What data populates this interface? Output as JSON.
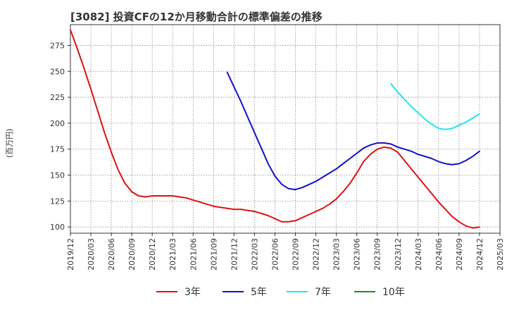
{
  "chart_data": {
    "type": "line",
    "title": "[3082]  投資CFの12か月移動合計の標準偏差の推移",
    "xlabel": "",
    "ylabel": "(百万円)",
    "x_ticks": [
      "2019/12",
      "2020/03",
      "2020/06",
      "2020/09",
      "2020/12",
      "2021/03",
      "2021/06",
      "2021/09",
      "2021/12",
      "2022/03",
      "2022/06",
      "2022/09",
      "2022/12",
      "2023/03",
      "2023/06",
      "2023/09",
      "2023/12",
      "2024/03",
      "2024/06",
      "2024/09",
      "2024/12",
      "2025/03"
    ],
    "y_ticks": [
      100,
      125,
      150,
      175,
      200,
      225,
      250,
      275
    ],
    "xlim": [
      "2019/12",
      "2025/03"
    ],
    "ylim": [
      94,
      295
    ],
    "grid": true,
    "legend_position": "bottom",
    "series": [
      {
        "name": "3年",
        "color": "#dd1111",
        "x": [
          "2019/12",
          "2020/01",
          "2020/02",
          "2020/03",
          "2020/04",
          "2020/05",
          "2020/06",
          "2020/07",
          "2020/08",
          "2020/09",
          "2020/10",
          "2020/11",
          "2020/12",
          "2021/01",
          "2021/02",
          "2021/03",
          "2021/04",
          "2021/05",
          "2021/06",
          "2021/07",
          "2021/08",
          "2021/09",
          "2021/10",
          "2021/11",
          "2021/12",
          "2022/01",
          "2022/02",
          "2022/03",
          "2022/04",
          "2022/05",
          "2022/06",
          "2022/07",
          "2022/08",
          "2022/09",
          "2022/10",
          "2022/11",
          "2022/12",
          "2023/01",
          "2023/02",
          "2023/03",
          "2023/04",
          "2023/05",
          "2023/06",
          "2023/07",
          "2023/08",
          "2023/09",
          "2023/10",
          "2023/11",
          "2023/12",
          "2024/01",
          "2024/02",
          "2024/03",
          "2024/04",
          "2024/05",
          "2024/06",
          "2024/07",
          "2024/08",
          "2024/09",
          "2024/10",
          "2024/11",
          "2024/12"
        ],
        "values": [
          290,
          272,
          253,
          233,
          212,
          191,
          172,
          155,
          142,
          134,
          130,
          129,
          130,
          130,
          130,
          130,
          129,
          128,
          126,
          124,
          122,
          120,
          119,
          118,
          117,
          117,
          116,
          115,
          113,
          111,
          108,
          105,
          105,
          106,
          109,
          112,
          115,
          118,
          122,
          127,
          134,
          142,
          152,
          163,
          170,
          175,
          177,
          176,
          172,
          164,
          156,
          148,
          140,
          132,
          124,
          117,
          110,
          105,
          101,
          99,
          100
        ]
      },
      {
        "name": "5年",
        "color": "#1111cc",
        "x": [
          "2021/11",
          "2021/12",
          "2022/01",
          "2022/02",
          "2022/03",
          "2022/04",
          "2022/05",
          "2022/06",
          "2022/07",
          "2022/08",
          "2022/09",
          "2022/10",
          "2022/11",
          "2022/12",
          "2023/01",
          "2023/02",
          "2023/03",
          "2023/04",
          "2023/05",
          "2023/06",
          "2023/07",
          "2023/08",
          "2023/09",
          "2023/10",
          "2023/11",
          "2023/12",
          "2024/01",
          "2024/02",
          "2024/03",
          "2024/04",
          "2024/05",
          "2024/06",
          "2024/07",
          "2024/08",
          "2024/09",
          "2024/10",
          "2024/11",
          "2024/12"
        ],
        "values": [
          249,
          235,
          221,
          206,
          191,
          176,
          161,
          149,
          141,
          137,
          136,
          138,
          141,
          144,
          148,
          152,
          156,
          161,
          166,
          171,
          176,
          179,
          181,
          181,
          180,
          177,
          175,
          173,
          170,
          168,
          166,
          163,
          161,
          160,
          161,
          164,
          168,
          173
        ]
      },
      {
        "name": "7年",
        "color": "#22e5ee",
        "x": [
          "2023/11",
          "2023/12",
          "2024/01",
          "2024/02",
          "2024/03",
          "2024/04",
          "2024/05",
          "2024/06",
          "2024/07",
          "2024/08",
          "2024/09",
          "2024/10",
          "2024/11",
          "2024/12"
        ],
        "values": [
          238,
          230,
          223,
          216,
          210,
          204,
          199,
          195,
          194,
          195,
          198,
          201,
          205,
          209
        ]
      },
      {
        "name": "10年",
        "color": "#228b22",
        "x": [],
        "values": []
      }
    ]
  }
}
